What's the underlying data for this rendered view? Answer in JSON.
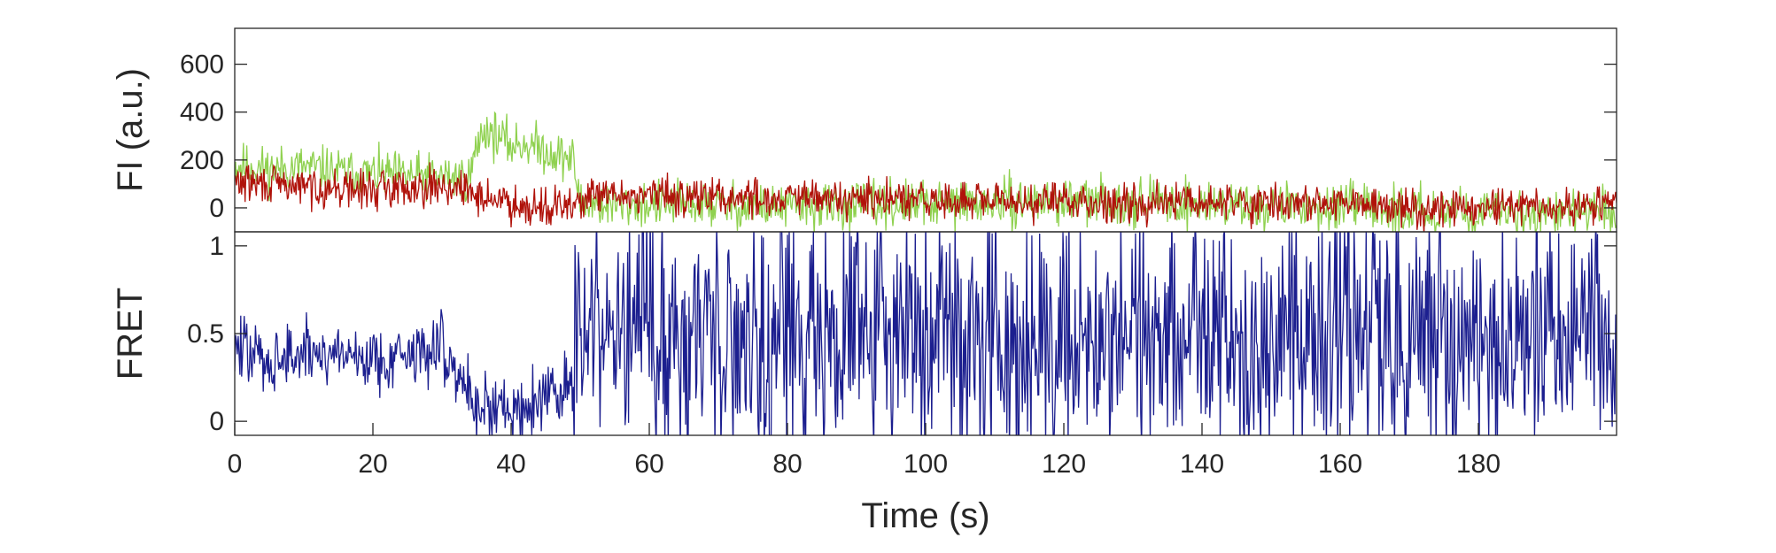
{
  "chart_data": [
    {
      "type": "line",
      "panel": "intensity",
      "ylabel": "FI (a.u.)",
      "xlabel": "",
      "xlim": [
        0,
        200
      ],
      "ylim": [
        -100,
        750
      ],
      "yticks": [
        0,
        200,
        400,
        600
      ],
      "ytick_labels": [
        "0",
        "200",
        "400",
        "600"
      ],
      "grid": false,
      "colors": {
        "donor": "#8fd14f",
        "acceptor": "#b0120a"
      },
      "series": [
        {
          "key": "donor",
          "color": "#8fd14f",
          "x": [
            0,
            5,
            10,
            15,
            20,
            25,
            30,
            34,
            35,
            36,
            38,
            40,
            42,
            45,
            48,
            49,
            50,
            55,
            60,
            65,
            70,
            75,
            80,
            90,
            100,
            110,
            120,
            130,
            140,
            150,
            160,
            170,
            180,
            190,
            200
          ],
          "values": [
            180,
            160,
            170,
            150,
            140,
            135,
            130,
            125,
            250,
            330,
            300,
            260,
            270,
            240,
            210,
            200,
            20,
            10,
            15,
            20,
            10,
            5,
            0,
            10,
            15,
            20,
            30,
            25,
            15,
            10,
            0,
            -10,
            -20,
            -15,
            -20
          ]
        },
        {
          "key": "acceptor",
          "color": "#b0120a",
          "x": [
            0,
            5,
            10,
            15,
            20,
            25,
            30,
            35,
            40,
            45,
            49,
            50,
            55,
            60,
            70,
            80,
            90,
            100,
            110,
            120,
            130,
            140,
            150,
            160,
            170,
            180,
            190,
            200
          ],
          "values": [
            110,
            95,
            90,
            80,
            75,
            90,
            95,
            55,
            20,
            5,
            0,
            40,
            50,
            55,
            45,
            40,
            35,
            30,
            25,
            30,
            25,
            25,
            20,
            15,
            5,
            0,
            0,
            5
          ]
        }
      ]
    },
    {
      "type": "line",
      "panel": "fret",
      "ylabel": "FRET",
      "xlabel": "Time (s)",
      "xlim": [
        0,
        200
      ],
      "ylim": [
        -0.08,
        1.08
      ],
      "yticks": [
        0,
        0.5,
        1
      ],
      "ytick_labels": [
        "0",
        "0.5",
        "1"
      ],
      "xticks": [
        0,
        20,
        40,
        60,
        80,
        100,
        120,
        140,
        160,
        180
      ],
      "xtick_labels": [
        "0",
        "20",
        "40",
        "60",
        "80",
        "100",
        "120",
        "140",
        "160",
        "180"
      ],
      "grid": false,
      "colors": {
        "fret": "#1c1f8f"
      },
      "series": [
        {
          "key": "fret",
          "color": "#1c1f8f",
          "x": [
            0,
            5,
            10,
            15,
            20,
            25,
            30,
            35,
            40,
            45,
            49,
            50,
            60,
            70,
            80,
            90,
            100,
            110,
            120,
            130,
            140,
            150,
            160,
            170,
            180,
            190,
            200
          ],
          "values": [
            0.42,
            0.35,
            0.38,
            0.4,
            0.35,
            0.38,
            0.42,
            0.1,
            0.06,
            0.15,
            0.2,
            0.5,
            0.5,
            0.5,
            0.5,
            0.5,
            0.5,
            0.5,
            0.48,
            0.5,
            0.5,
            0.5,
            0.5,
            0.45,
            0.45,
            0.45,
            0.45
          ]
        }
      ]
    }
  ]
}
